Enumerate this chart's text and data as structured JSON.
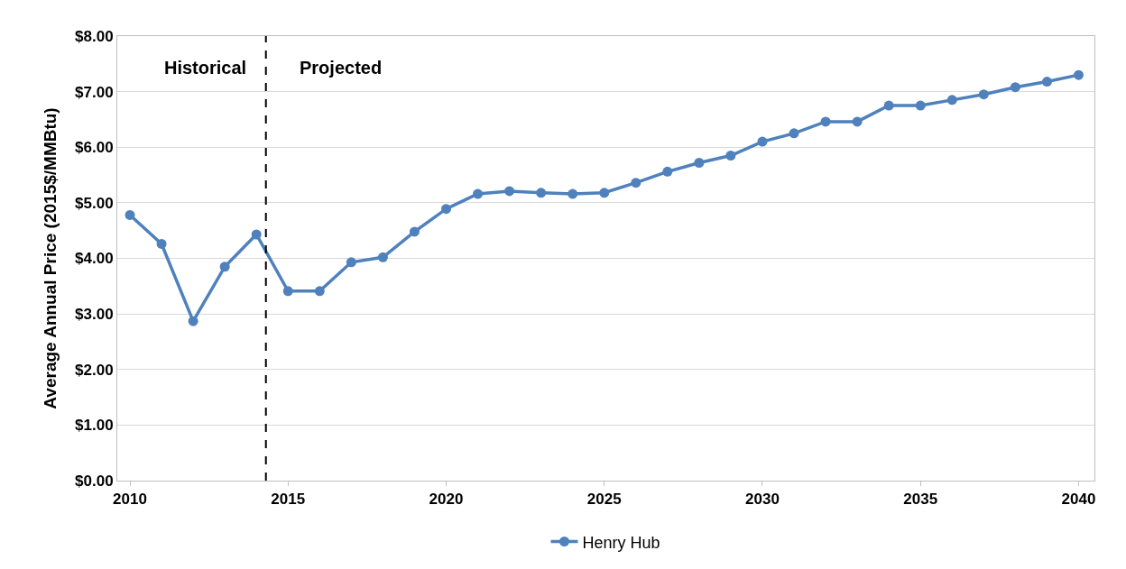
{
  "chart_data": {
    "type": "line",
    "ylabel": "Average Annual Price (2015$/MMBtu)",
    "x": [
      2010,
      2011,
      2012,
      2013,
      2014,
      2015,
      2016,
      2017,
      2018,
      2019,
      2020,
      2021,
      2022,
      2023,
      2024,
      2025,
      2026,
      2027,
      2028,
      2029,
      2030,
      2031,
      2032,
      2033,
      2034,
      2035,
      2036,
      2037,
      2038,
      2039,
      2040
    ],
    "series": [
      {
        "name": "Henry Hub",
        "color": "#4f81bd",
        "values": [
          4.78,
          4.26,
          2.87,
          3.85,
          4.43,
          3.41,
          3.41,
          3.93,
          4.02,
          4.48,
          4.89,
          5.16,
          5.21,
          5.18,
          5.16,
          5.18,
          5.36,
          5.56,
          5.72,
          5.85,
          6.1,
          6.25,
          6.46,
          6.46,
          6.75,
          6.75,
          6.85,
          6.95,
          7.08,
          7.18,
          7.3
        ]
      }
    ],
    "xlim": [
      2009.6,
      2040.5
    ],
    "xticks": [
      2010,
      2015,
      2020,
      2025,
      2030,
      2035,
      2040
    ],
    "ylim": [
      0,
      8
    ],
    "yticks": [
      {
        "value": 0,
        "label": "$0.00"
      },
      {
        "value": 1,
        "label": "$1.00"
      },
      {
        "value": 2,
        "label": "$2.00"
      },
      {
        "value": 3,
        "label": "$3.00"
      },
      {
        "value": 4,
        "label": "$4.00"
      },
      {
        "value": 5,
        "label": "$5.00"
      },
      {
        "value": 6,
        "label": "$6.00"
      },
      {
        "value": 7,
        "label": "$7.00"
      },
      {
        "value": 8,
        "label": "$8.00"
      }
    ],
    "ref_lines": [
      {
        "axis": "x",
        "value": 2014.3,
        "color": "#000000",
        "line_style": "dashed"
      }
    ],
    "annotations": [
      "Historical",
      "Projected"
    ],
    "grid": "y",
    "legend": "bottom",
    "marker": "circle",
    "line_style": "solid"
  }
}
